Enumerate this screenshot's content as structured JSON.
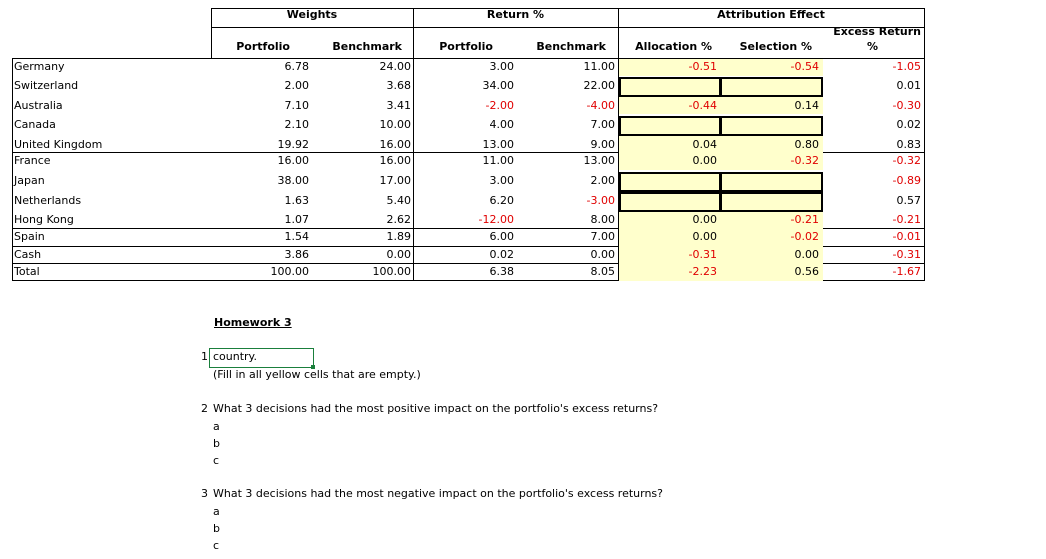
{
  "headers": {
    "weights": "Weights",
    "return": "Return %",
    "attribution": "Attribution Effect",
    "excess_return_l1": "Excess Return",
    "excess_return_l2": "%",
    "portfolio_w": "Portfolio",
    "benchmark_w": "Benchmark",
    "portfolio_r": "Portfolio",
    "benchmark_r": "Benchmark",
    "allocation": "Allocation %",
    "selection": "Selection %"
  },
  "rows": [
    {
      "country": "Germany",
      "pw": "6.78",
      "bw": "24.00",
      "pr": "3.00",
      "br": "11.00",
      "alloc": "-0.51",
      "sel": "-0.54",
      "excess": "-1.05"
    },
    {
      "country": "Switzerland",
      "pw": "2.00",
      "bw": "3.68",
      "pr": "34.00",
      "br": "22.00",
      "alloc": "",
      "sel": "",
      "excess": "0.01"
    },
    {
      "country": "Australia",
      "pw": "7.10",
      "bw": "3.41",
      "pr": "-2.00",
      "br": "-4.00",
      "alloc": "-0.44",
      "sel": "0.14",
      "excess": "-0.30"
    },
    {
      "country": "Canada",
      "pw": "2.10",
      "bw": "10.00",
      "pr": "4.00",
      "br": "7.00",
      "alloc": "",
      "sel": "",
      "excess": "0.02"
    },
    {
      "country": "United Kingdom",
      "pw": "19.92",
      "bw": "16.00",
      "pr": "13.00",
      "br": "9.00",
      "alloc": "0.04",
      "sel": "0.80",
      "excess": "0.83"
    },
    {
      "country": "France",
      "pw": "16.00",
      "bw": "16.00",
      "pr": "11.00",
      "br": "13.00",
      "alloc": "0.00",
      "sel": "-0.32",
      "excess": "-0.32"
    },
    {
      "country": "Japan",
      "pw": "38.00",
      "bw": "17.00",
      "pr": "3.00",
      "br": "2.00",
      "alloc": "",
      "sel": "",
      "excess": "-0.89"
    },
    {
      "country": "Netherlands",
      "pw": "1.63",
      "bw": "5.40",
      "pr": "6.20",
      "br": "-3.00",
      "alloc": "",
      "sel": "",
      "excess": "0.57"
    },
    {
      "country": "Hong Kong",
      "pw": "1.07",
      "bw": "2.62",
      "pr": "-12.00",
      "br": "8.00",
      "alloc": "0.00",
      "sel": "-0.21",
      "excess": "-0.21"
    },
    {
      "country": "Spain",
      "pw": "1.54",
      "bw": "1.89",
      "pr": "6.00",
      "br": "7.00",
      "alloc": "0.00",
      "sel": "-0.02",
      "excess": "-0.01"
    },
    {
      "country": "Cash",
      "pw": "3.86",
      "bw": "0.00",
      "pr": "0.02",
      "br": "0.00",
      "alloc": "-0.31",
      "sel": "0.00",
      "excess": "-0.31"
    },
    {
      "country": "Total",
      "pw": "100.00",
      "bw": "100.00",
      "pr": "6.38",
      "br": "8.05",
      "alloc": "-2.23",
      "sel": "0.56",
      "excess": "-1.67"
    }
  ],
  "homework": {
    "title": "Homework 3",
    "q1_num": "1",
    "q1_cell": "country.",
    "q1_note": "(Fill in all yellow cells that are empty.)",
    "q2_num": "2",
    "q2_text": "What 3 decisions had the most positive impact on the portfolio's excess returns?",
    "q2_a": "a",
    "q2_b": "b",
    "q2_c": "c",
    "q3_num": "3",
    "q3_text": "What 3 decisions had the most negative impact on the portfolio's excess returns?",
    "q3_a": "a",
    "q3_b": "b",
    "q3_c": "c"
  },
  "colors": {
    "negative": "#e00000",
    "highlight": "#ffffcc",
    "selected_border": "#1a7f3c"
  }
}
